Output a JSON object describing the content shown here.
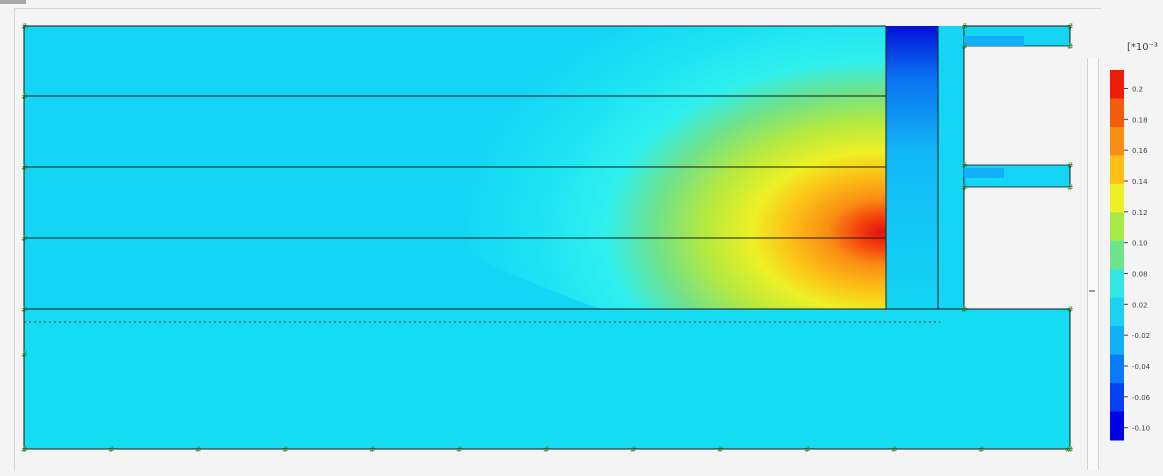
{
  "legend": {
    "title": "[*10⁻³",
    "scale_colors": [
      "#ee1c08",
      "#f45b0c",
      "#f98f13",
      "#fcc016",
      "#eef025",
      "#a8ea45",
      "#6fe28a",
      "#33e6e4",
      "#1bd2f5",
      "#12b0f6",
      "#0a7af6",
      "#0640f4",
      "#0000e6"
    ],
    "tick_labels": [
      "0.2",
      "0.18",
      "0.16",
      "0.14",
      "0.12",
      "0.10",
      "0.08",
      "0.02",
      "-0.02",
      "-0.04",
      "-0.06",
      "-0.10"
    ]
  },
  "colors": {
    "soil_background": "#14d6f4",
    "lower_soil": "#14dcf2",
    "wall": "#0a3ee0",
    "layer_line": "#1a1a1a"
  },
  "icons": [
    "node-marker-icon"
  ]
}
